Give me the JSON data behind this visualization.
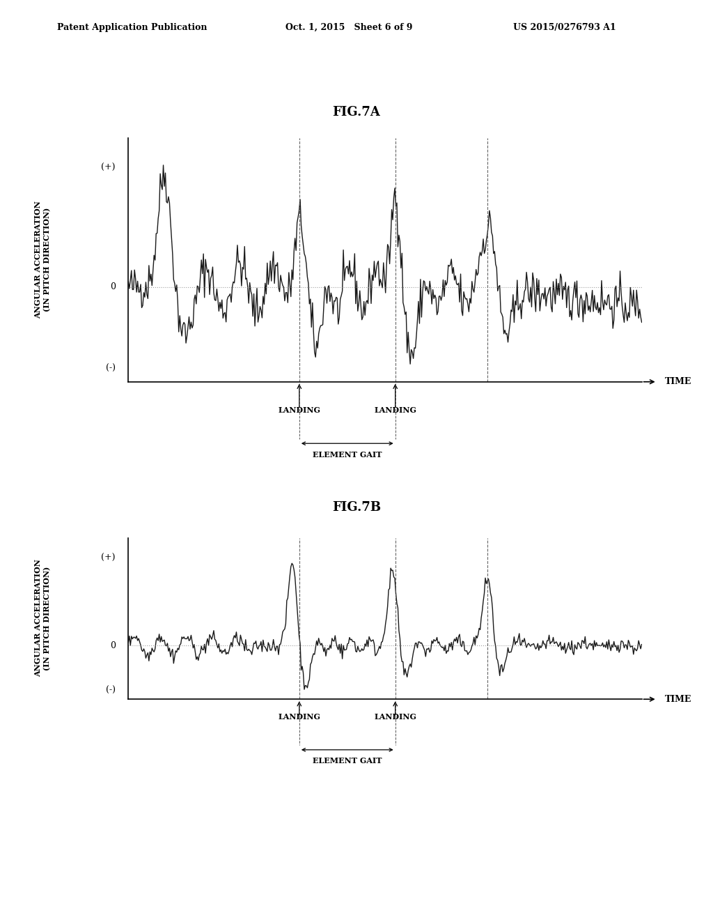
{
  "fig_title_a": "FIG.7A",
  "fig_title_b": "FIG.7B",
  "header_left": "Patent Application Publication",
  "header_center": "Oct. 1, 2015   Sheet 6 of 9",
  "header_right": "US 2015/0276793 A1",
  "ylabel": "ANGULAR ACCELERATION\n(IN PITCH DIRECTION)",
  "xlabel": "TIME",
  "plus_label": "(+)",
  "minus_label": "(-)",
  "zero_label": "0",
  "landing_label": "LANDING",
  "element_gait_label": "ELEMENT GAIT",
  "background_color": "#ffffff",
  "line_color": "#1a1a1a",
  "dashed_line_color": "#555555",
  "dotted_zero_color": "#888888",
  "land1_t": 3.33,
  "land2_t": 5.2,
  "land3_t": 7.0
}
